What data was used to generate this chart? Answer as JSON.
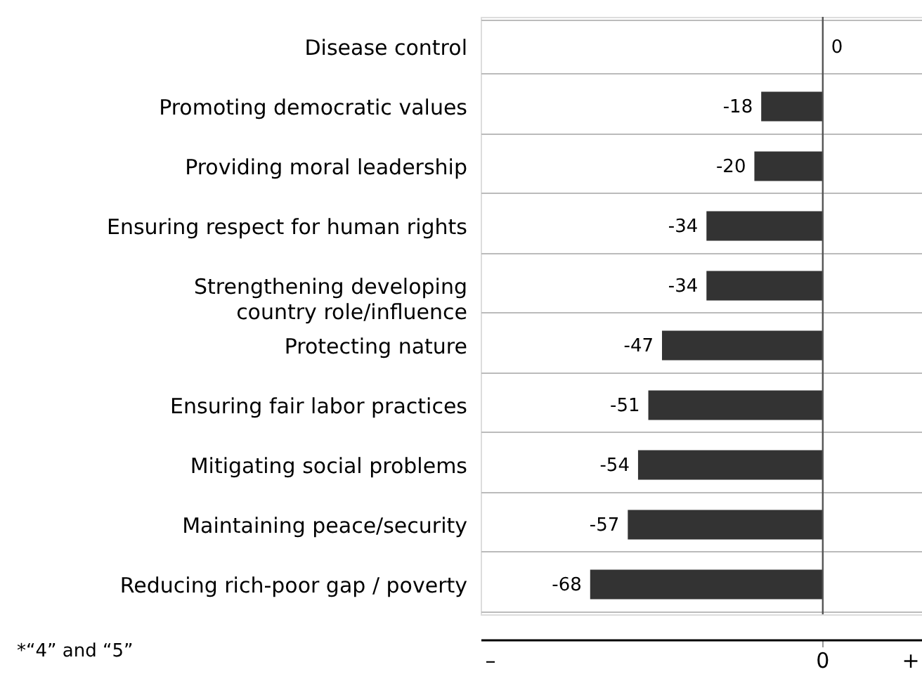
{
  "chart_data": {
    "type": "bar",
    "orientation": "horizontal",
    "categories": [
      "Disease control",
      "Promoting democratic values",
      "Providing moral leadership",
      "Ensuring respect for human rights",
      "Strengthening developing country role/influence",
      "Protecting nature",
      "Ensuring fair labor practices",
      "Mitigating social problems",
      "Maintaining peace/security",
      "Reducing rich-poor gap / poverty"
    ],
    "values": [
      0,
      -18,
      -20,
      -34,
      -34,
      -47,
      -51,
      -54,
      -57,
      -68
    ],
    "color": "#333333",
    "xlim": [
      -100,
      29
    ],
    "data_labels": true,
    "grid": "y",
    "ref_lines": [
      {
        "axis": "x",
        "value": 0,
        "label": null
      }
    ],
    "annotations": [
      "*“4” and “5”",
      "–",
      {
        "text": "0",
        "x": 0
      },
      "+"
    ]
  }
}
